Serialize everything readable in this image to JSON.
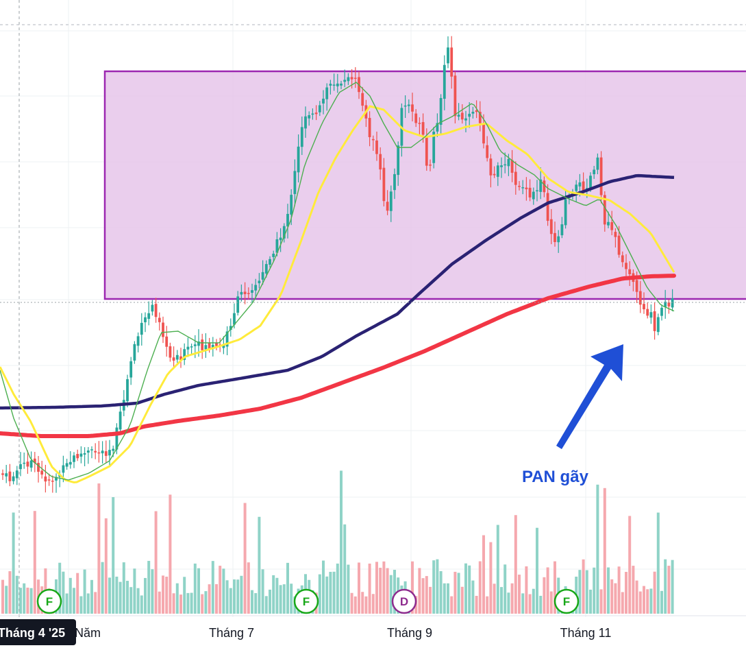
{
  "chart_data": {
    "type": "candlestick",
    "title": "",
    "xlabel": "",
    "ylabel": "",
    "x_ticks": [
      "Tháng 4 '25",
      "Năm",
      "Tháng 7",
      "Tháng 9",
      "Tháng 11"
    ],
    "grid": true,
    "legend": "none",
    "colors": {
      "up": "#26a69a",
      "down": "#ef5350",
      "up_volume": "#8fd3c7",
      "down_volume": "#f5a8ae",
      "ma_fast": "#4caf50",
      "ma_mid": "#ffeb3b",
      "ma_long": "#2a2273",
      "ma_200": "#f23645",
      "zone_fill": "#e6c6ea",
      "zone_border": "#9c27b0",
      "arrow": "#1f4fd6"
    },
    "zone": {
      "label": ""
    },
    "badges": [
      {
        "letter": "F",
        "color": "#18a818"
      },
      {
        "letter": "F",
        "color": "#18a818"
      },
      {
        "letter": "D",
        "color": "#8e2b8e"
      },
      {
        "letter": "F",
        "color": "#18a818"
      }
    ],
    "annotation": "PAN gãy"
  }
}
